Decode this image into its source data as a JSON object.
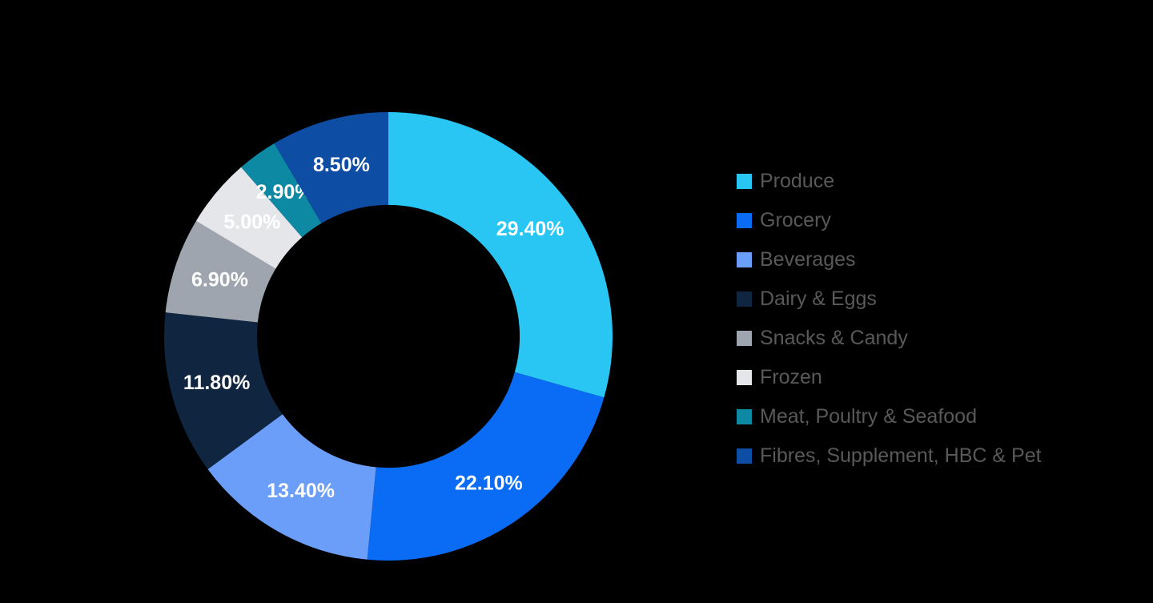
{
  "chart_data": {
    "type": "pie",
    "subtype": "donut",
    "title": "",
    "categories": [
      "Produce",
      "Grocery",
      "Beverages",
      "Dairy & Eggs",
      "Snacks & Candy",
      "Frozen",
      "Meat, Poultry & Seafood",
      "Fibres, Supplement, HBC & Pet"
    ],
    "values": [
      29.4,
      22.1,
      13.4,
      11.8,
      6.9,
      5.0,
      2.9,
      8.5
    ],
    "data_labels": [
      "29.40%",
      "22.10%",
      "13.40%",
      "11.80%",
      "6.90%",
      "5.00%",
      "2.90%",
      "8.50%"
    ],
    "colors": [
      "#29C6F4",
      "#0A6CF5",
      "#6B9EF8",
      "#0F2540",
      "#9FA5AE",
      "#E4E6E9",
      "#0E89A3",
      "#0E4DA4"
    ],
    "start_angle_deg": 0,
    "direction": "clockwise",
    "inner_radius_ratio": 0.586,
    "legend_position": "right",
    "background_color": "#000000",
    "data_label_color": "#FFFFFF",
    "legend_text_color": "#595959"
  }
}
